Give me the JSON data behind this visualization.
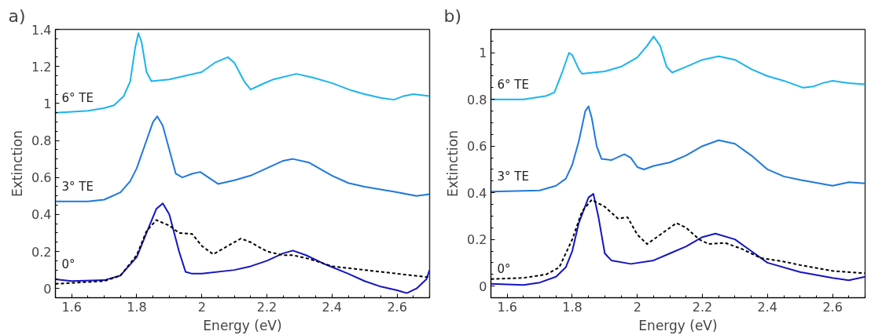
{
  "chart_data": [
    {
      "type": "line",
      "title": "a)",
      "xlabel": "Energy (eV)",
      "ylabel": "Extinction",
      "xlim": [
        1.55,
        2.7
      ],
      "xticks": [
        1.6,
        1.8,
        2,
        2.2,
        2.4,
        2.6
      ],
      "ylim": [
        -0.05,
        1.4
      ],
      "yticks": [
        0,
        0.2,
        0.4,
        0.6,
        0.8,
        1,
        1.2,
        1.4
      ],
      "series": [
        {
          "name": "6° TE",
          "color": "#1bb4ee",
          "line_style": "solid",
          "x": [
            1.55,
            1.6,
            1.65,
            1.7,
            1.73,
            1.76,
            1.78,
            1.795,
            1.805,
            1.815,
            1.83,
            1.845,
            1.9,
            1.95,
            2.0,
            2.04,
            2.08,
            2.1,
            2.13,
            2.15,
            2.18,
            2.22,
            2.29,
            2.34,
            2.4,
            2.46,
            2.5,
            2.55,
            2.59,
            2.62,
            2.65,
            2.7
          ],
          "values": [
            0.95,
            0.955,
            0.96,
            0.975,
            0.99,
            1.04,
            1.12,
            1.3,
            1.38,
            1.33,
            1.17,
            1.12,
            1.13,
            1.15,
            1.17,
            1.22,
            1.25,
            1.22,
            1.12,
            1.075,
            1.1,
            1.13,
            1.16,
            1.14,
            1.11,
            1.07,
            1.05,
            1.03,
            1.02,
            1.04,
            1.05,
            1.04
          ]
        },
        {
          "name": "3° TE",
          "color": "#1f78dd",
          "line_style": "solid",
          "x": [
            1.55,
            1.65,
            1.7,
            1.75,
            1.78,
            1.8,
            1.83,
            1.85,
            1.863,
            1.88,
            1.9,
            1.92,
            1.94,
            1.97,
            1.995,
            2.02,
            2.05,
            2.1,
            2.15,
            2.2,
            2.25,
            2.28,
            2.33,
            2.4,
            2.45,
            2.5,
            2.6,
            2.66,
            2.7
          ],
          "values": [
            0.47,
            0.47,
            0.48,
            0.52,
            0.58,
            0.65,
            0.8,
            0.9,
            0.93,
            0.88,
            0.75,
            0.62,
            0.6,
            0.62,
            0.63,
            0.6,
            0.565,
            0.585,
            0.61,
            0.65,
            0.69,
            0.7,
            0.68,
            0.61,
            0.57,
            0.55,
            0.52,
            0.5,
            0.51
          ]
        },
        {
          "name": "0°",
          "color": "#1414c4",
          "line_style": "solid",
          "x": [
            1.55,
            1.6,
            1.7,
            1.75,
            1.8,
            1.83,
            1.86,
            1.88,
            1.9,
            1.93,
            1.95,
            1.97,
            2.0,
            2.1,
            2.15,
            2.2,
            2.25,
            2.28,
            2.32,
            2.38,
            2.45,
            2.5,
            2.55,
            2.6,
            2.63,
            2.66,
            2.69,
            2.7
          ],
          "values": [
            0.05,
            0.04,
            0.045,
            0.07,
            0.17,
            0.3,
            0.43,
            0.46,
            0.4,
            0.2,
            0.09,
            0.08,
            0.08,
            0.1,
            0.12,
            0.15,
            0.19,
            0.205,
            0.18,
            0.13,
            0.08,
            0.04,
            0.01,
            -0.01,
            -0.025,
            0.0,
            0.05,
            0.1
          ]
        },
        {
          "color": "#000000",
          "line_style": "dashed",
          "x": [
            1.55,
            1.7,
            1.75,
            1.8,
            1.83,
            1.86,
            1.9,
            1.93,
            1.97,
            2.0,
            2.035,
            2.07,
            2.12,
            2.15,
            2.2,
            2.25,
            2.28,
            2.33,
            2.4,
            2.5,
            2.6,
            2.7
          ],
          "values": [
            0.025,
            0.04,
            0.07,
            0.18,
            0.31,
            0.37,
            0.34,
            0.3,
            0.295,
            0.23,
            0.185,
            0.22,
            0.27,
            0.25,
            0.2,
            0.18,
            0.18,
            0.16,
            0.12,
            0.1,
            0.08,
            0.06
          ]
        }
      ]
    },
    {
      "type": "line",
      "title": "b)",
      "xlabel": "Energy (eV)",
      "ylabel": "Extinction",
      "xlim": [
        1.55,
        2.7
      ],
      "xticks": [
        1.6,
        1.8,
        2,
        2.2,
        2.4,
        2.6
      ],
      "ylim": [
        -0.05,
        1.1
      ],
      "yticks": [
        0,
        0.2,
        0.4,
        0.6,
        0.8,
        1
      ],
      "series": [
        {
          "name": "6° TE",
          "color": "#1bb4ee",
          "line_style": "solid",
          "x": [
            1.55,
            1.65,
            1.72,
            1.745,
            1.77,
            1.79,
            1.8,
            1.82,
            1.83,
            1.9,
            1.95,
            2.0,
            2.03,
            2.05,
            2.07,
            2.09,
            2.107,
            2.15,
            2.2,
            2.25,
            2.3,
            2.35,
            2.4,
            2.45,
            2.51,
            2.54,
            2.57,
            2.6,
            2.65,
            2.7
          ],
          "values": [
            0.8,
            0.8,
            0.815,
            0.83,
            0.92,
            1.0,
            0.99,
            0.93,
            0.91,
            0.92,
            0.94,
            0.98,
            1.03,
            1.07,
            1.03,
            0.94,
            0.915,
            0.94,
            0.97,
            0.985,
            0.97,
            0.93,
            0.9,
            0.88,
            0.85,
            0.855,
            0.87,
            0.88,
            0.87,
            0.865
          ]
        },
        {
          "name": "3° TE",
          "color": "#1f78dd",
          "line_style": "solid",
          "x": [
            1.55,
            1.7,
            1.75,
            1.78,
            1.8,
            1.82,
            1.84,
            1.85,
            1.86,
            1.875,
            1.89,
            1.92,
            1.96,
            1.98,
            2.0,
            2.02,
            2.05,
            2.1,
            2.15,
            2.2,
            2.25,
            2.3,
            2.35,
            2.4,
            2.45,
            2.5,
            2.6,
            2.65,
            2.7
          ],
          "values": [
            0.405,
            0.41,
            0.43,
            0.46,
            0.52,
            0.62,
            0.75,
            0.77,
            0.72,
            0.6,
            0.545,
            0.54,
            0.565,
            0.55,
            0.51,
            0.5,
            0.515,
            0.53,
            0.56,
            0.6,
            0.625,
            0.61,
            0.56,
            0.5,
            0.47,
            0.455,
            0.43,
            0.445,
            0.44
          ]
        },
        {
          "name": "0°",
          "color": "#1414c4",
          "line_style": "solid",
          "x": [
            1.55,
            1.65,
            1.7,
            1.75,
            1.78,
            1.8,
            1.82,
            1.85,
            1.865,
            1.88,
            1.9,
            1.92,
            1.98,
            2.05,
            2.1,
            2.15,
            2.2,
            2.24,
            2.3,
            2.35,
            2.4,
            2.5,
            2.6,
            2.65,
            2.7
          ],
          "values": [
            0.01,
            0.005,
            0.015,
            0.04,
            0.08,
            0.15,
            0.27,
            0.38,
            0.395,
            0.3,
            0.14,
            0.11,
            0.095,
            0.11,
            0.14,
            0.17,
            0.21,
            0.225,
            0.2,
            0.15,
            0.1,
            0.06,
            0.035,
            0.025,
            0.04
          ]
        },
        {
          "color": "#000000",
          "line_style": "dashed",
          "x": [
            1.55,
            1.65,
            1.72,
            1.76,
            1.8,
            1.83,
            1.86,
            1.9,
            1.94,
            1.97,
            2.0,
            2.03,
            2.07,
            2.12,
            2.15,
            2.19,
            2.22,
            2.27,
            2.32,
            2.38,
            2.45,
            2.5,
            2.6,
            2.7
          ],
          "values": [
            0.03,
            0.035,
            0.05,
            0.08,
            0.2,
            0.32,
            0.37,
            0.34,
            0.29,
            0.295,
            0.22,
            0.18,
            0.22,
            0.27,
            0.25,
            0.2,
            0.18,
            0.185,
            0.16,
            0.12,
            0.105,
            0.09,
            0.065,
            0.055
          ]
        }
      ]
    }
  ]
}
